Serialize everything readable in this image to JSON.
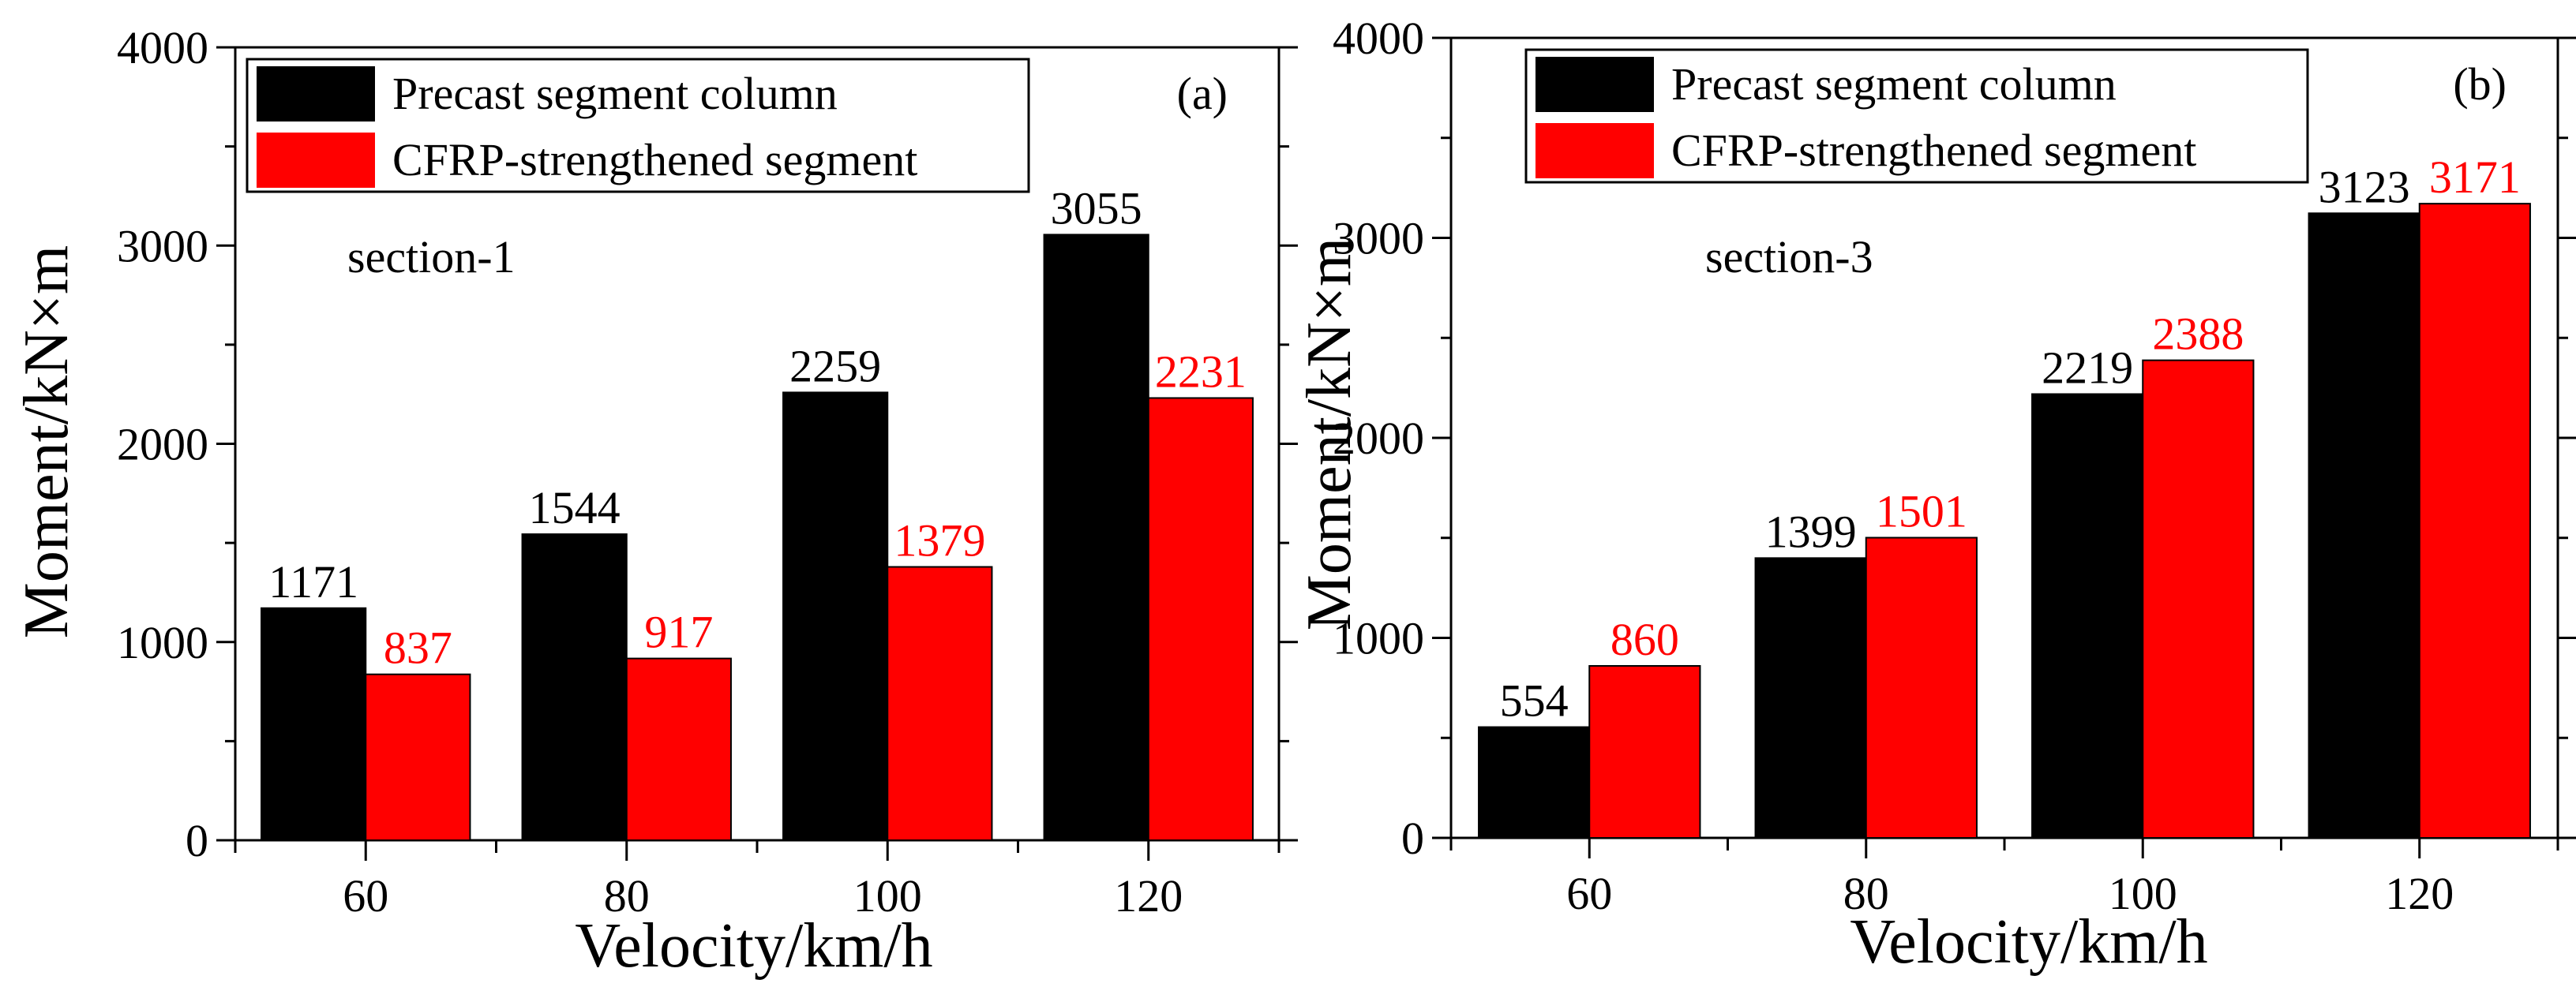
{
  "colors": {
    "series_a": "#000000",
    "series_b": "#ff0000",
    "axis": "#000000",
    "background": "#ffffff"
  },
  "chart_data": [
    {
      "panel": "a",
      "type": "bar",
      "panel_label": "(a)",
      "annotation": "section-1",
      "xlabel": "Velocity/km/h",
      "ylabel": "Moment/kN×m",
      "categories": [
        "60",
        "80",
        "100",
        "120"
      ],
      "ylim": [
        0,
        4000
      ],
      "yticks": [
        0,
        1000,
        2000,
        3000,
        4000
      ],
      "series": [
        {
          "name": "Precast segment column",
          "color": "#000000",
          "values": [
            1171,
            1544,
            2259,
            3055
          ]
        },
        {
          "name": "CFRP-strengthened segment",
          "color": "#ff0000",
          "values": [
            837,
            917,
            1379,
            2231
          ]
        }
      ],
      "legend_position": "top-left",
      "grid": false
    },
    {
      "panel": "b",
      "type": "bar",
      "panel_label": "(b)",
      "annotation": "section-3",
      "xlabel": "Velocity/km/h",
      "ylabel": "Moment/kN×m",
      "categories": [
        "60",
        "80",
        "100",
        "120"
      ],
      "ylim": [
        0,
        4000
      ],
      "yticks": [
        0,
        1000,
        2000,
        3000,
        4000
      ],
      "series": [
        {
          "name": "Precast segment column",
          "color": "#000000",
          "values": [
            554,
            1399,
            2219,
            3123
          ]
        },
        {
          "name": "CFRP-strengthened segment",
          "color": "#ff0000",
          "values": [
            860,
            1501,
            2388,
            3171
          ]
        }
      ],
      "legend_position": "top-left",
      "grid": false
    }
  ]
}
